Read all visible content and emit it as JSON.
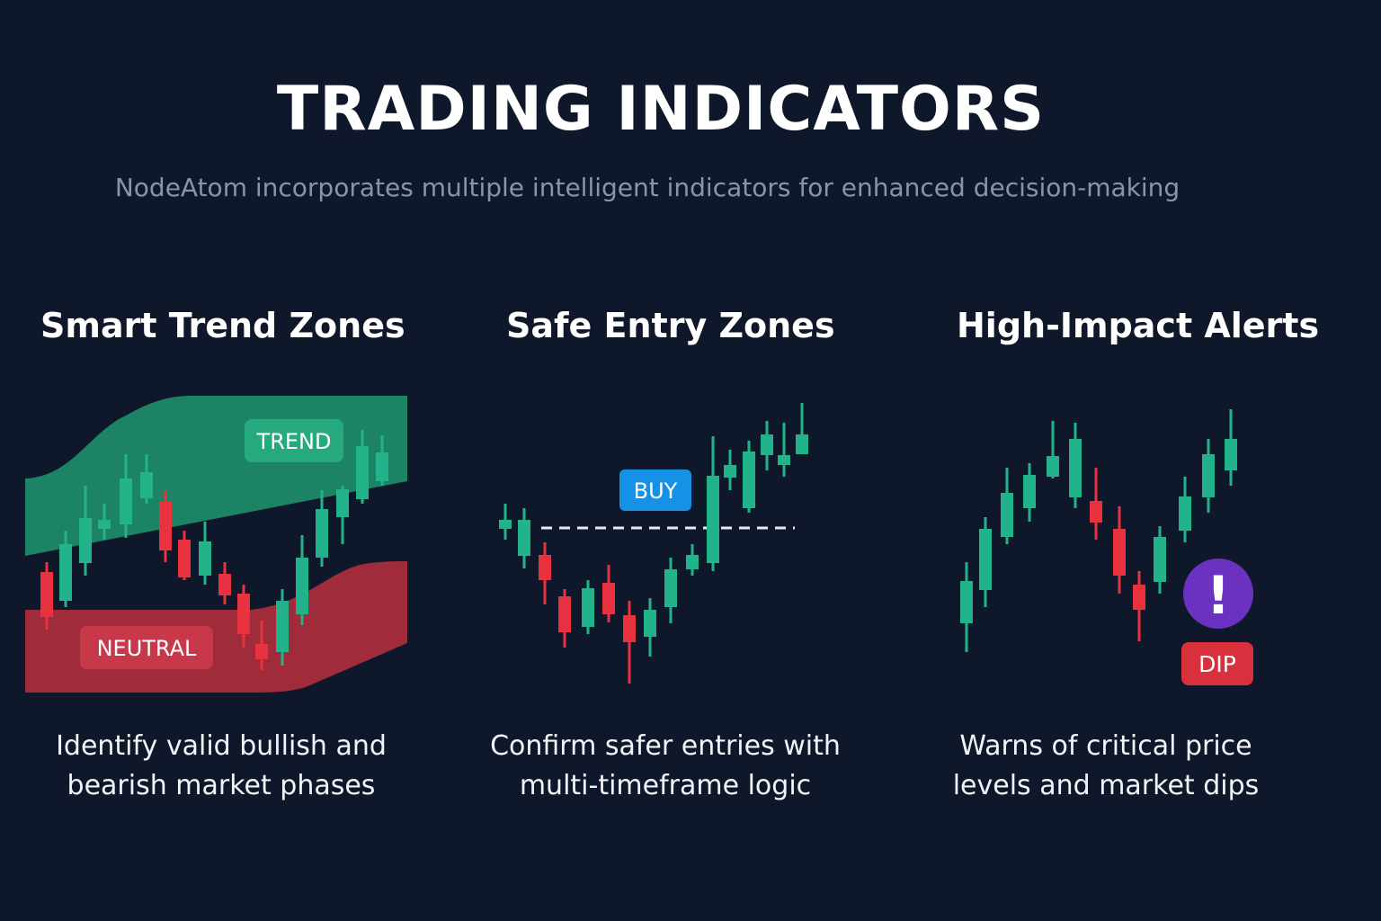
{
  "header": {
    "title": "TRADING INDICATORS",
    "subtitle": "NodeAtom incorporates multiple intelligent indicators for enhanced decision-making"
  },
  "colors": {
    "background": "#0f182b",
    "bullish": "#23b38a",
    "bearish": "#e8323f",
    "trend_zone": "#1f8f6c",
    "neutral_zone": "#b02d3c",
    "buy_badge": "#1592e6",
    "alert_icon": "#6b32c2",
    "dip_badge": "#d9303e"
  },
  "sections": [
    {
      "title": "Smart Trend Zones",
      "description_line1": "Identify valid bullish and",
      "description_line2": "bearish market phases",
      "labels": {
        "trend": "TREND",
        "neutral": "NEUTRAL"
      }
    },
    {
      "title": "Safe Entry Zones",
      "description_line1": "Confirm safer entries with",
      "description_line2": "multi-timeframe logic",
      "labels": {
        "buy": "BUY"
      }
    },
    {
      "title": "High-Impact Alerts",
      "description_line1": "Warns of critical price",
      "description_line2": "levels and market dips",
      "labels": {
        "alert_icon": "!",
        "dip": "DIP"
      }
    }
  ]
}
